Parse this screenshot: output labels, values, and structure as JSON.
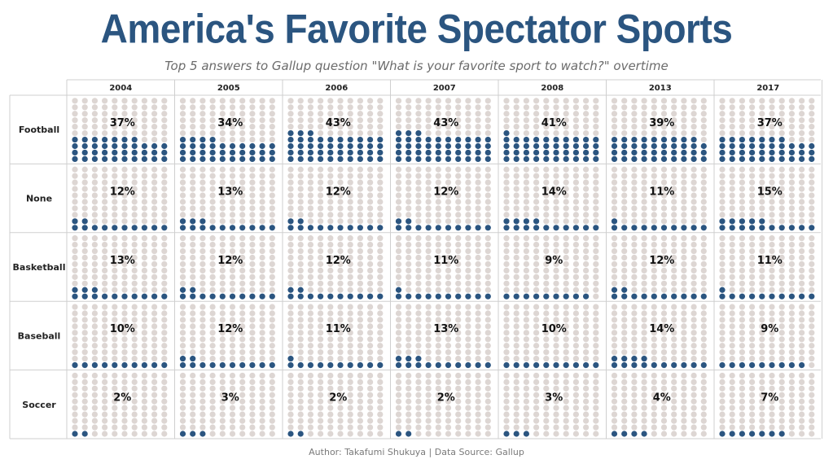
{
  "title": "America's Favorite Spectator Sports",
  "subtitle": "Top 5 answers to Gallup question \"What is your favorite sport to watch?\" overtime",
  "footer": "Author: Takafumi Shukuya  |  Data Source: Gallup",
  "colors": {
    "filled": "#2b5580",
    "empty": "#ddd6d3",
    "title": "#2b5580",
    "grid": "#cfcfcf"
  },
  "chart_data": {
    "type": "waffle",
    "years": [
      "2004",
      "2005",
      "2006",
      "2007",
      "2008",
      "2013",
      "2017"
    ],
    "series": [
      {
        "name": "Football",
        "values": [
          37,
          34,
          43,
          43,
          41,
          39,
          37
        ]
      },
      {
        "name": "None",
        "values": [
          12,
          13,
          12,
          12,
          14,
          11,
          15
        ]
      },
      {
        "name": "Basketball",
        "values": [
          13,
          12,
          12,
          11,
          9,
          12,
          11
        ]
      },
      {
        "name": "Baseball",
        "values": [
          10,
          12,
          11,
          13,
          10,
          14,
          9
        ]
      },
      {
        "name": "Soccer",
        "values": [
          2,
          3,
          2,
          2,
          3,
          4,
          7
        ]
      }
    ],
    "value_labels": [
      [
        "37%",
        "34%",
        "43%",
        "43%",
        "41%",
        "39%",
        "37%"
      ],
      [
        "12%",
        "13%",
        "12%",
        "12%",
        "14%",
        "11%",
        "15%"
      ],
      [
        "13%",
        "12%",
        "12%",
        "11%",
        "9%",
        "12%",
        "11%"
      ],
      [
        "10%",
        "12%",
        "11%",
        "13%",
        "10%",
        "14%",
        "9%"
      ],
      [
        "2%",
        "3%",
        "2%",
        "2%",
        "3%",
        "4%",
        "7%"
      ]
    ],
    "grid": "10x10 dots per cell, 1 dot = 1%"
  }
}
